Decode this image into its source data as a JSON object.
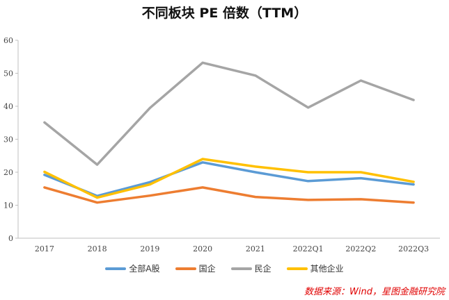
{
  "chart_data": {
    "type": "line",
    "title": "不同板块 PE 倍数（TTM）",
    "categories": [
      "2017",
      "2018",
      "2019",
      "2020",
      "2021",
      "2022Q1",
      "2022Q2",
      "2022Q3"
    ],
    "ylim": [
      0,
      60
    ],
    "yticks": [
      "0",
      "10",
      "20",
      "30",
      "40",
      "50",
      "60"
    ],
    "xlabel": "",
    "ylabel": "",
    "grid": false,
    "legend_position": "bottom",
    "series": [
      {
        "name": "全部A股",
        "color": "#5b9bd5",
        "values": [
          19.2,
          12.8,
          17.0,
          23.0,
          20.0,
          17.3,
          18.2,
          16.3
        ]
      },
      {
        "name": "国企",
        "color": "#ed7d31",
        "values": [
          15.4,
          10.8,
          12.9,
          15.4,
          12.5,
          11.6,
          11.8,
          10.8
        ]
      },
      {
        "name": "民企",
        "color": "#a5a5a5",
        "values": [
          35.1,
          22.3,
          39.5,
          53.2,
          49.3,
          39.6,
          47.8,
          41.9
        ]
      },
      {
        "name": "其他企业",
        "color": "#ffc000",
        "values": [
          20.1,
          12.3,
          16.3,
          24.0,
          21.7,
          20.0,
          20.0,
          17.1
        ]
      }
    ]
  },
  "source": "数据来源：Wind，星图金融研究院"
}
